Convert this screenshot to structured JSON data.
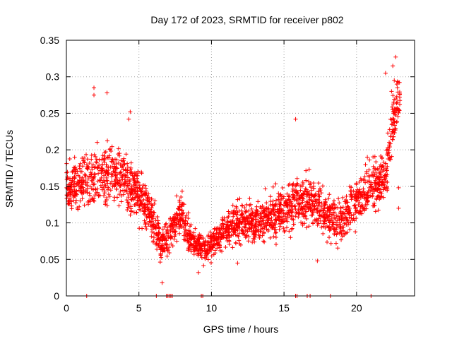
{
  "chart_data": {
    "type": "scatter",
    "title": "Day 172 of 2023, SRMTID for receiver p802",
    "xlabel": "GPS time / hours",
    "ylabel": "SRMTID / TECUs",
    "xlim": [
      0,
      24
    ],
    "ylim": [
      0,
      0.35
    ],
    "x_ticks": [
      0,
      5,
      10,
      15,
      20
    ],
    "x_tick_labels": [
      "0",
      "5",
      "10",
      "15",
      "20"
    ],
    "y_ticks": [
      0,
      0.05,
      0.1,
      0.15,
      0.2,
      0.25,
      0.3,
      0.35
    ],
    "y_tick_labels": [
      "0",
      "0.05",
      "0.1",
      "0.15",
      "0.2",
      "0.25",
      "0.3",
      "0.35"
    ],
    "grid": true,
    "marker": "plus",
    "color": "#ff0000",
    "trend": {
      "x": [
        0,
        1,
        2,
        3,
        4,
        5,
        5.5,
        6,
        6.5,
        7,
        7.5,
        8,
        8.5,
        9,
        9.5,
        10,
        11,
        12,
        13,
        14,
        15,
        16,
        17,
        18,
        19,
        20,
        21,
        22,
        22.5,
        23
      ],
      "y": [
        0.15,
        0.155,
        0.16,
        0.17,
        0.16,
        0.14,
        0.125,
        0.1,
        0.07,
        0.08,
        0.1,
        0.11,
        0.08,
        0.07,
        0.065,
        0.07,
        0.09,
        0.1,
        0.1,
        0.11,
        0.12,
        0.13,
        0.13,
        0.11,
        0.1,
        0.13,
        0.15,
        0.16,
        0.24,
        0.27
      ],
      "spread": [
        0.04,
        0.045,
        0.05,
        0.055,
        0.05,
        0.045,
        0.04,
        0.035,
        0.03,
        0.03,
        0.035,
        0.04,
        0.03,
        0.02,
        0.02,
        0.025,
        0.03,
        0.035,
        0.035,
        0.04,
        0.04,
        0.045,
        0.045,
        0.04,
        0.04,
        0.04,
        0.04,
        0.045,
        0.05,
        0.045
      ],
      "point_count": 2400
    },
    "outliers": [
      {
        "x": 1.9,
        "y": 0.285
      },
      {
        "x": 1.9,
        "y": 0.275
      },
      {
        "x": 2.8,
        "y": 0.278
      },
      {
        "x": 4.4,
        "y": 0.252
      },
      {
        "x": 4.3,
        "y": 0.242
      },
      {
        "x": 15.8,
        "y": 0.242
      },
      {
        "x": 22.0,
        "y": 0.305
      },
      {
        "x": 22.7,
        "y": 0.327
      },
      {
        "x": 22.5,
        "y": 0.315
      },
      {
        "x": 22.6,
        "y": 0.295
      },
      {
        "x": 6.6,
        "y": 0.018
      },
      {
        "x": 9.1,
        "y": 0.032
      },
      {
        "x": 11.8,
        "y": 0.045
      },
      {
        "x": 17.3,
        "y": 0.048
      },
      {
        "x": 22.9,
        "y": 0.12
      },
      {
        "x": 22.9,
        "y": 0.148
      }
    ],
    "zero_points_x": [
      1.4,
      6.2,
      6.9,
      7.0,
      7.1,
      7.2,
      7.3,
      9.3,
      9.4,
      15.8,
      15.9,
      16.6,
      16.8,
      18.2,
      21.0
    ]
  }
}
